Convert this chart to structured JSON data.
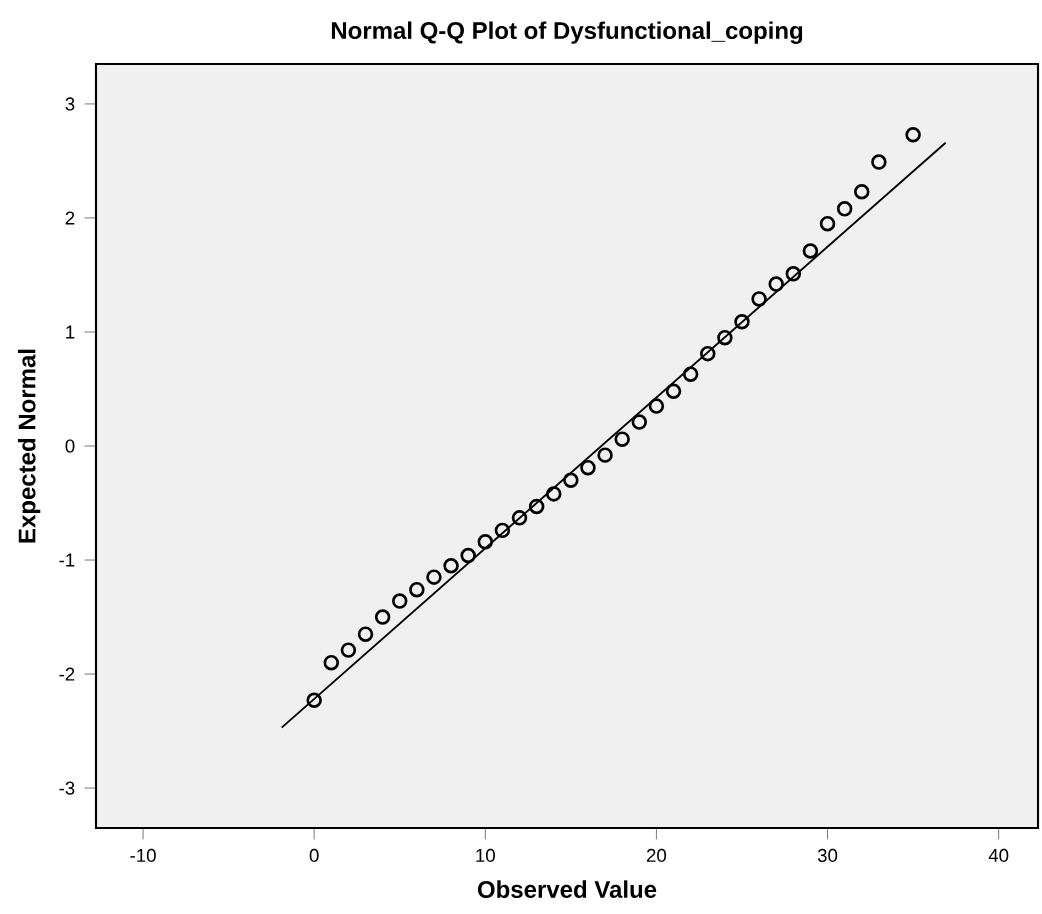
{
  "chart_data": {
    "type": "scatter",
    "title": "Normal Q-Q Plot of Dysfunctional_coping",
    "xlabel": "Observed Value",
    "ylabel": "Expected Normal",
    "xlim": [
      -12.75,
      42.3
    ],
    "ylim": [
      -3.35,
      3.35
    ],
    "xticks": [
      -10,
      0,
      10,
      20,
      30,
      40
    ],
    "yticks": [
      -3,
      -2,
      -1,
      0,
      1,
      2,
      3
    ],
    "series": [
      {
        "color": "#000000",
        "marker": "circle",
        "x": [
          0,
          1,
          2,
          3,
          4,
          5,
          6,
          7,
          8,
          9,
          10,
          11,
          12,
          13,
          14,
          15,
          16,
          17,
          18,
          19,
          20,
          21,
          22,
          23,
          24,
          25,
          26,
          27,
          28,
          29,
          30,
          31,
          32,
          33,
          35
        ],
        "values": [
          -2.23,
          -1.9,
          -1.79,
          -1.65,
          -1.5,
          -1.36,
          -1.26,
          -1.15,
          -1.05,
          -0.96,
          -0.84,
          -0.74,
          -0.63,
          -0.53,
          -0.42,
          -0.3,
          -0.19,
          -0.08,
          0.06,
          0.21,
          0.35,
          0.48,
          0.63,
          0.81,
          0.95,
          1.09,
          1.29,
          1.42,
          1.51,
          1.71,
          1.95,
          2.08,
          2.23,
          2.49,
          2.73
        ]
      },
      {
        "type": "line",
        "color": "#000000",
        "marker": "none",
        "x": [
          -1.9,
          36.9
        ],
        "values": [
          -2.47,
          2.66
        ]
      }
    ]
  }
}
